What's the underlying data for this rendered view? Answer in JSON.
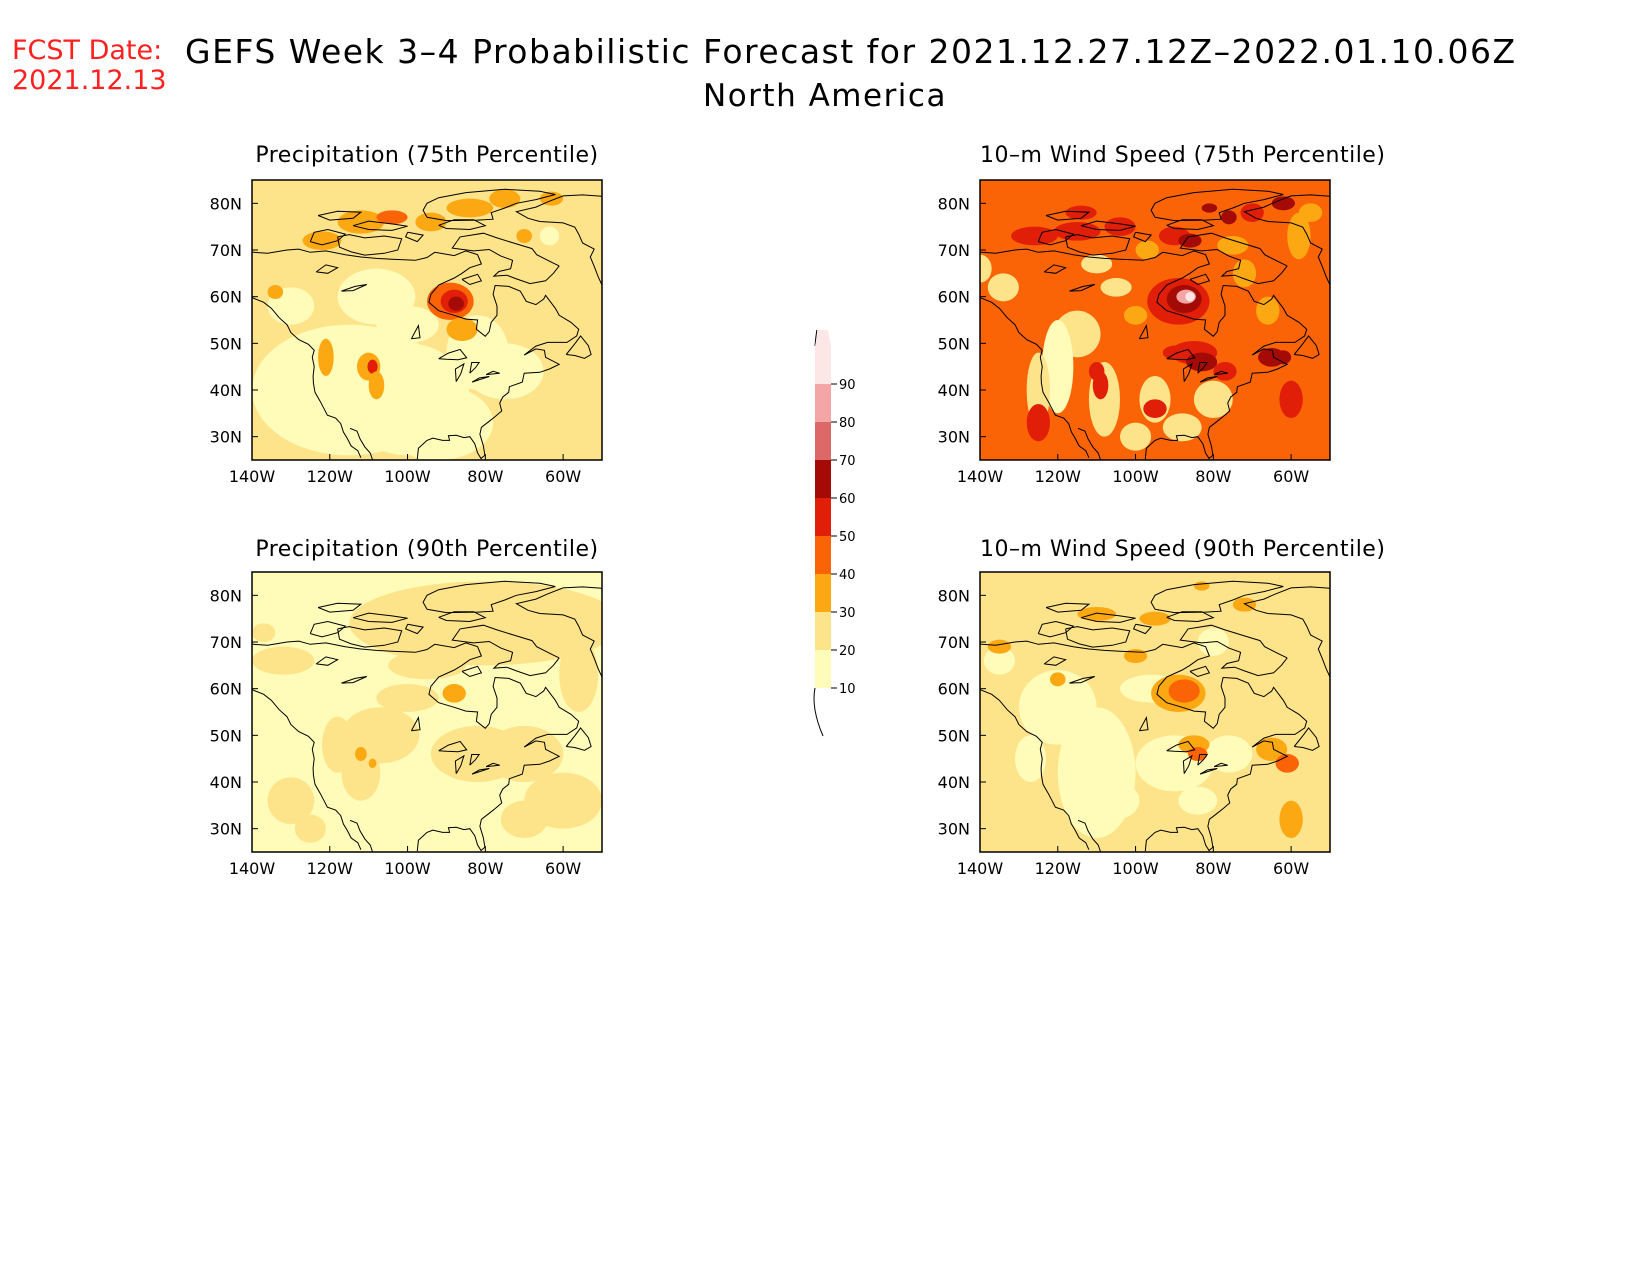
{
  "header": {
    "fcst_label": "FCST Date:",
    "fcst_date": "2021.12.13",
    "title": "GEFS Week 3–4 Probabilistic Forecast for 2021.12.27.12Z–2022.01.10.06Z",
    "region": "North America"
  },
  "colors": {
    "c10": "#fffbb8",
    "c20": "#fde38a",
    "c30": "#fca812",
    "c40": "#fb6406",
    "c50": "#e11e08",
    "c60": "#a40a06",
    "c70": "#dd6868",
    "c80": "#f4a6a6",
    "c90": "#fde6e6",
    "coast": "#000000"
  },
  "axes": {
    "lon_ticks": [
      "140W",
      "120W",
      "100W",
      "80W",
      "60W"
    ],
    "lat_ticks": [
      "80N",
      "70N",
      "60N",
      "50N",
      "40N",
      "30N"
    ]
  },
  "legend": {
    "levels": [
      "10",
      "20",
      "30",
      "40",
      "50",
      "60",
      "70",
      "80",
      "90"
    ]
  },
  "panels": [
    {
      "id": "precip75",
      "title": "Precipitation (75th Percentile)",
      "background_level": "c20"
    },
    {
      "id": "wind75",
      "title": "10–m Wind Speed (75th Percentile)",
      "background_level": "c40"
    },
    {
      "id": "precip90",
      "title": "Precipitation (90th Percentile)",
      "background_level": "c10"
    },
    {
      "id": "wind90",
      "title": "10–m Wind Speed (90th Percentile)",
      "background_level": "c20"
    }
  ]
}
